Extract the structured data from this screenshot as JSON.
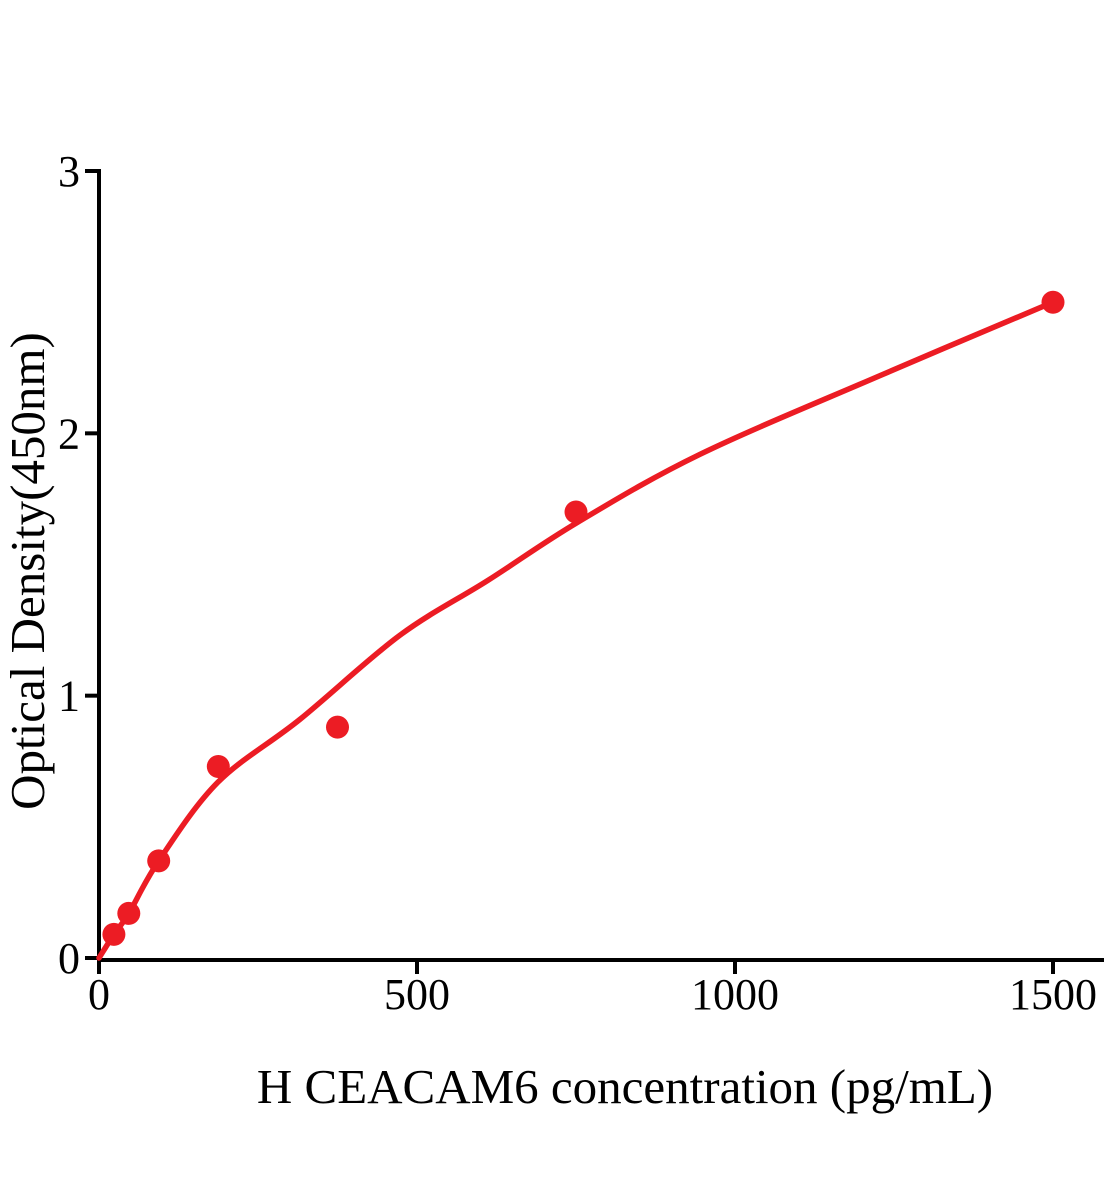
{
  "chart_data": {
    "type": "scatter",
    "title": "",
    "xlabel": "H CEACAM6 concentration (pg/mL)",
    "ylabel": "Optical Density(450nm)",
    "x_ticks": [
      0,
      500,
      1000,
      1500
    ],
    "y_ticks": [
      0,
      1,
      2,
      3
    ],
    "xlim": [
      0,
      1580
    ],
    "ylim": [
      0,
      3
    ],
    "grid": false,
    "legend": "none",
    "accent_color": "#EC1C24",
    "axis_color": "#000000",
    "series": [
      {
        "marker": "filled-circle",
        "color": "#EC1C24",
        "points": [
          {
            "x": 23.4,
            "y": 0.09
          },
          {
            "x": 46.9,
            "y": 0.17
          },
          {
            "x": 93.8,
            "y": 0.37
          },
          {
            "x": 187.5,
            "y": 0.73
          },
          {
            "x": 375,
            "y": 0.88
          },
          {
            "x": 750,
            "y": 1.7
          },
          {
            "x": 1500,
            "y": 2.5
          }
        ]
      }
    ],
    "fit_curve": {
      "color": "#EC1C24",
      "points": [
        [
          0,
          0
        ],
        [
          23.4,
          0.09
        ],
        [
          46.9,
          0.17
        ],
        [
          93.8,
          0.37
        ],
        [
          187,
          0.67
        ],
        [
          316,
          0.91
        ],
        [
          473,
          1.23
        ],
        [
          612,
          1.44
        ],
        [
          752,
          1.66
        ],
        [
          945,
          1.92
        ],
        [
          1228,
          2.22
        ],
        [
          1500,
          2.5
        ]
      ]
    }
  }
}
